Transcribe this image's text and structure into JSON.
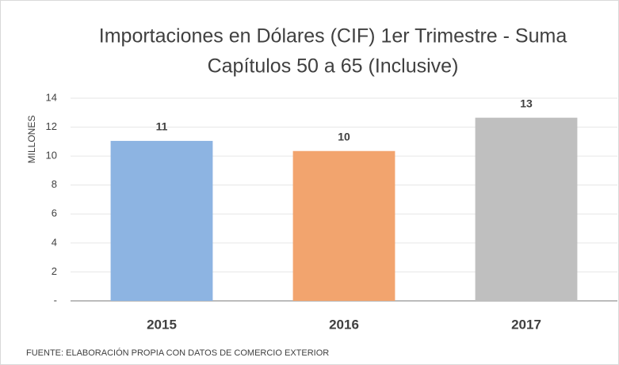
{
  "chart_data": {
    "type": "bar",
    "title": [
      "Importaciones en Dólares (CIF) 1er Trimestre - Suma",
      "Capítulos 50 a 65 (Inclusive)"
    ],
    "y_axis_label": "MILLONES",
    "categories": [
      "2015",
      "2016",
      "2017"
    ],
    "values": [
      11.05,
      10.35,
      12.65
    ],
    "value_labels": [
      "11",
      "10",
      "13"
    ],
    "colors": [
      "#8db4e2",
      "#f2a46e",
      "#bfbfbf"
    ],
    "ylim": [
      0,
      14
    ],
    "yticks": [
      {
        "value": 0,
        "label": "-"
      },
      2,
      4,
      6,
      8,
      10,
      12,
      14
    ],
    "grid": true,
    "source": "FUENTE: ELABORACIÓN PROPIA CON DATOS DE COMERCIO EXTERIOR"
  }
}
